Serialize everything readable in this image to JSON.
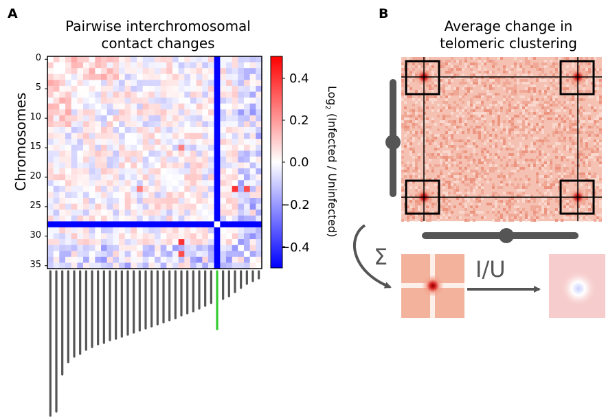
{
  "panels": {
    "a": {
      "letter": "A",
      "title_line1": "Pairwise interchromosomal",
      "title_line2": "contact changes",
      "ylabel": "Chromosomes",
      "yticks": [
        "0",
        "5",
        "10",
        "15",
        "20",
        "25",
        "30",
        "35"
      ],
      "colorbar": {
        "label_prefix": "Log",
        "label_sub": "2",
        "label_suffix": " (Infected / Uninfected)",
        "ticks": [
          "0.4",
          "0.2",
          "0.0",
          "−0.2",
          "−0.4"
        ]
      }
    },
    "b": {
      "letter": "B",
      "title_line1": "Average change in",
      "title_line2": "telomeric clustering",
      "sum_symbol": "Σ",
      "ratio_label": "I/U"
    }
  },
  "chart_data": {
    "type": "heatmap",
    "n_chromosomes": 36,
    "ylabel": "Chromosomes",
    "yticks": [
      0,
      5,
      10,
      15,
      20,
      25,
      30,
      35
    ],
    "color_range": [
      -0.5,
      0.5
    ],
    "colorbar_ticks": [
      0.4,
      0.2,
      0.0,
      -0.2,
      -0.4
    ],
    "highlighted_chromosome": 28,
    "highlighted_chromosome_value": -0.5
  },
  "colors": {
    "positive": "#ff0000",
    "negative": "#0000ff",
    "chromosome_bar": "#555555",
    "highlight_bar": "#33cc33",
    "frame": "#000000"
  }
}
